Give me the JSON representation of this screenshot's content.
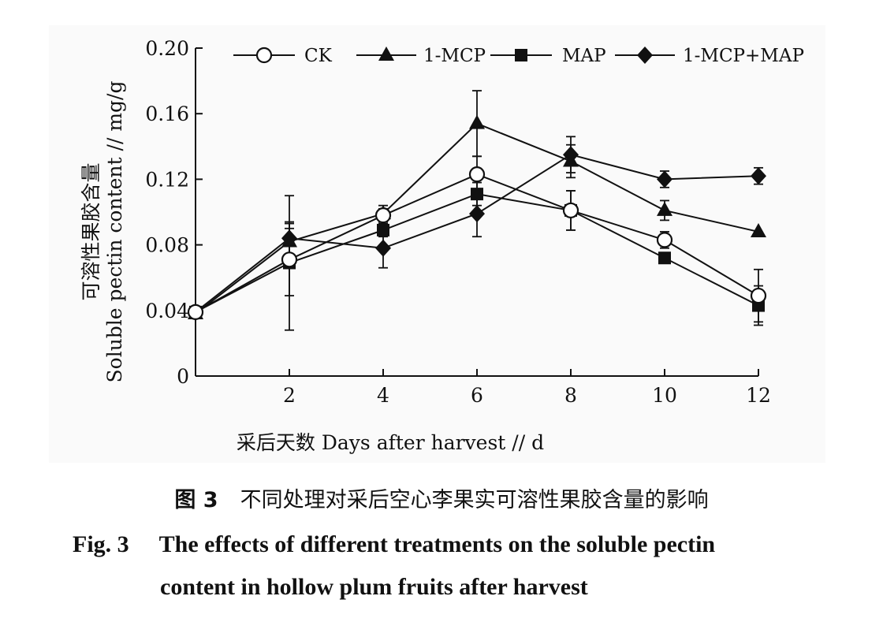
{
  "figure": {
    "caption_cn_label": "图 3",
    "caption_cn_text": "不同处理对采后空心李果实可溶性果胶含量的影响",
    "caption_en_label": "Fig. 3",
    "caption_en_line1": "The effects of different treatments on the soluble pectin",
    "caption_en_line2": "content in hollow plum fruits after harvest"
  },
  "chart_data": {
    "type": "line",
    "title": "",
    "xlabel": "采后天数 Days after harvest // d",
    "ylabel_cn": "可溶性果胶含量",
    "ylabel_en": "Soluble pectin content // mg/g",
    "x": [
      0,
      2,
      4,
      6,
      8,
      10,
      12
    ],
    "xticks": [
      "2",
      "4",
      "6",
      "8",
      "10",
      "12"
    ],
    "yticks": [
      "0",
      "0.04",
      "0.08",
      "0.12",
      "0.16",
      "0.20"
    ],
    "xlim": [
      0,
      12
    ],
    "ylim": [
      0,
      0.2
    ],
    "grid": false,
    "legend_position": "top",
    "series": [
      {
        "name": "CK",
        "marker": "circle-open",
        "values": [
          0.039,
          0.071,
          0.098,
          0.123,
          0.101,
          0.083,
          0.049
        ],
        "errors": [
          0.002,
          0.022,
          0.004,
          0.011,
          0.012,
          0.005,
          0.016
        ]
      },
      {
        "name": "1-MCP",
        "marker": "triangle",
        "values": [
          0.038,
          0.082,
          0.099,
          0.154,
          0.131,
          0.101,
          0.088
        ],
        "errors": [
          0.002,
          0.008,
          0.005,
          0.02,
          0.01,
          0.006,
          0.003
        ]
      },
      {
        "name": "MAP",
        "marker": "square",
        "values": [
          0.039,
          0.069,
          0.089,
          0.111,
          0.101,
          0.072,
          0.043
        ],
        "errors": [
          0.002,
          0.041,
          0.004,
          0.007,
          0.012,
          0.003,
          0.012
        ]
      },
      {
        "name": "1-MCP+MAP",
        "marker": "diamond",
        "values": [
          0.039,
          0.084,
          0.078,
          0.099,
          0.135,
          0.12,
          0.122
        ],
        "errors": [
          0.002,
          0.01,
          0.012,
          0.014,
          0.011,
          0.005,
          0.005
        ]
      }
    ]
  }
}
